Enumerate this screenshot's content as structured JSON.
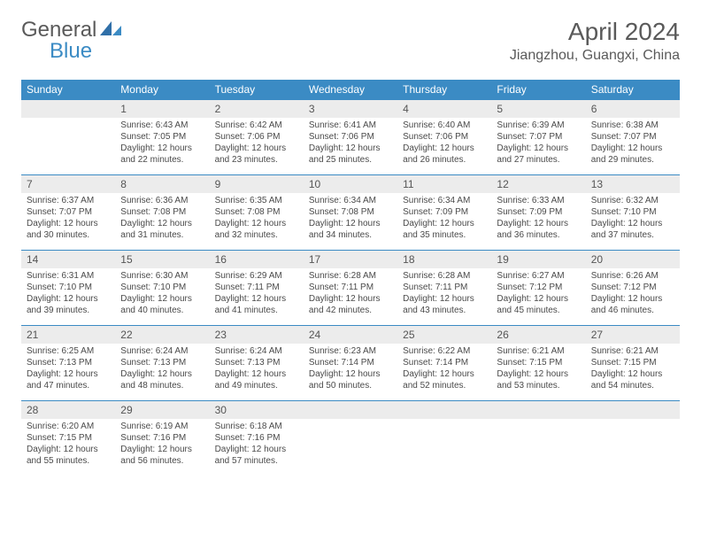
{
  "logo": {
    "general": "General",
    "blue": "Blue"
  },
  "title": "April 2024",
  "location": "Jiangzhou, Guangxi, China",
  "colors": {
    "header_bg": "#3b8bc4",
    "header_text": "#ffffff",
    "daynum_bg": "#ececec",
    "rule": "#3b8bc4",
    "text": "#4a4a4a",
    "page_bg": "#ffffff"
  },
  "typography": {
    "title_fontsize": 28,
    "location_fontsize": 16,
    "dow_fontsize": 12,
    "body_fontsize": 10
  },
  "dow": [
    "Sunday",
    "Monday",
    "Tuesday",
    "Wednesday",
    "Thursday",
    "Friday",
    "Saturday"
  ],
  "weeks": [
    [
      {
        "num": "",
        "lines": []
      },
      {
        "num": "1",
        "lines": [
          "Sunrise: 6:43 AM",
          "Sunset: 7:05 PM",
          "Daylight: 12 hours",
          "and 22 minutes."
        ]
      },
      {
        "num": "2",
        "lines": [
          "Sunrise: 6:42 AM",
          "Sunset: 7:06 PM",
          "Daylight: 12 hours",
          "and 23 minutes."
        ]
      },
      {
        "num": "3",
        "lines": [
          "Sunrise: 6:41 AM",
          "Sunset: 7:06 PM",
          "Daylight: 12 hours",
          "and 25 minutes."
        ]
      },
      {
        "num": "4",
        "lines": [
          "Sunrise: 6:40 AM",
          "Sunset: 7:06 PM",
          "Daylight: 12 hours",
          "and 26 minutes."
        ]
      },
      {
        "num": "5",
        "lines": [
          "Sunrise: 6:39 AM",
          "Sunset: 7:07 PM",
          "Daylight: 12 hours",
          "and 27 minutes."
        ]
      },
      {
        "num": "6",
        "lines": [
          "Sunrise: 6:38 AM",
          "Sunset: 7:07 PM",
          "Daylight: 12 hours",
          "and 29 minutes."
        ]
      }
    ],
    [
      {
        "num": "7",
        "lines": [
          "Sunrise: 6:37 AM",
          "Sunset: 7:07 PM",
          "Daylight: 12 hours",
          "and 30 minutes."
        ]
      },
      {
        "num": "8",
        "lines": [
          "Sunrise: 6:36 AM",
          "Sunset: 7:08 PM",
          "Daylight: 12 hours",
          "and 31 minutes."
        ]
      },
      {
        "num": "9",
        "lines": [
          "Sunrise: 6:35 AM",
          "Sunset: 7:08 PM",
          "Daylight: 12 hours",
          "and 32 minutes."
        ]
      },
      {
        "num": "10",
        "lines": [
          "Sunrise: 6:34 AM",
          "Sunset: 7:08 PM",
          "Daylight: 12 hours",
          "and 34 minutes."
        ]
      },
      {
        "num": "11",
        "lines": [
          "Sunrise: 6:34 AM",
          "Sunset: 7:09 PM",
          "Daylight: 12 hours",
          "and 35 minutes."
        ]
      },
      {
        "num": "12",
        "lines": [
          "Sunrise: 6:33 AM",
          "Sunset: 7:09 PM",
          "Daylight: 12 hours",
          "and 36 minutes."
        ]
      },
      {
        "num": "13",
        "lines": [
          "Sunrise: 6:32 AM",
          "Sunset: 7:10 PM",
          "Daylight: 12 hours",
          "and 37 minutes."
        ]
      }
    ],
    [
      {
        "num": "14",
        "lines": [
          "Sunrise: 6:31 AM",
          "Sunset: 7:10 PM",
          "Daylight: 12 hours",
          "and 39 minutes."
        ]
      },
      {
        "num": "15",
        "lines": [
          "Sunrise: 6:30 AM",
          "Sunset: 7:10 PM",
          "Daylight: 12 hours",
          "and 40 minutes."
        ]
      },
      {
        "num": "16",
        "lines": [
          "Sunrise: 6:29 AM",
          "Sunset: 7:11 PM",
          "Daylight: 12 hours",
          "and 41 minutes."
        ]
      },
      {
        "num": "17",
        "lines": [
          "Sunrise: 6:28 AM",
          "Sunset: 7:11 PM",
          "Daylight: 12 hours",
          "and 42 minutes."
        ]
      },
      {
        "num": "18",
        "lines": [
          "Sunrise: 6:28 AM",
          "Sunset: 7:11 PM",
          "Daylight: 12 hours",
          "and 43 minutes."
        ]
      },
      {
        "num": "19",
        "lines": [
          "Sunrise: 6:27 AM",
          "Sunset: 7:12 PM",
          "Daylight: 12 hours",
          "and 45 minutes."
        ]
      },
      {
        "num": "20",
        "lines": [
          "Sunrise: 6:26 AM",
          "Sunset: 7:12 PM",
          "Daylight: 12 hours",
          "and 46 minutes."
        ]
      }
    ],
    [
      {
        "num": "21",
        "lines": [
          "Sunrise: 6:25 AM",
          "Sunset: 7:13 PM",
          "Daylight: 12 hours",
          "and 47 minutes."
        ]
      },
      {
        "num": "22",
        "lines": [
          "Sunrise: 6:24 AM",
          "Sunset: 7:13 PM",
          "Daylight: 12 hours",
          "and 48 minutes."
        ]
      },
      {
        "num": "23",
        "lines": [
          "Sunrise: 6:24 AM",
          "Sunset: 7:13 PM",
          "Daylight: 12 hours",
          "and 49 minutes."
        ]
      },
      {
        "num": "24",
        "lines": [
          "Sunrise: 6:23 AM",
          "Sunset: 7:14 PM",
          "Daylight: 12 hours",
          "and 50 minutes."
        ]
      },
      {
        "num": "25",
        "lines": [
          "Sunrise: 6:22 AM",
          "Sunset: 7:14 PM",
          "Daylight: 12 hours",
          "and 52 minutes."
        ]
      },
      {
        "num": "26",
        "lines": [
          "Sunrise: 6:21 AM",
          "Sunset: 7:15 PM",
          "Daylight: 12 hours",
          "and 53 minutes."
        ]
      },
      {
        "num": "27",
        "lines": [
          "Sunrise: 6:21 AM",
          "Sunset: 7:15 PM",
          "Daylight: 12 hours",
          "and 54 minutes."
        ]
      }
    ],
    [
      {
        "num": "28",
        "lines": [
          "Sunrise: 6:20 AM",
          "Sunset: 7:15 PM",
          "Daylight: 12 hours",
          "and 55 minutes."
        ]
      },
      {
        "num": "29",
        "lines": [
          "Sunrise: 6:19 AM",
          "Sunset: 7:16 PM",
          "Daylight: 12 hours",
          "and 56 minutes."
        ]
      },
      {
        "num": "30",
        "lines": [
          "Sunrise: 6:18 AM",
          "Sunset: 7:16 PM",
          "Daylight: 12 hours",
          "and 57 minutes."
        ]
      },
      {
        "num": "",
        "lines": []
      },
      {
        "num": "",
        "lines": []
      },
      {
        "num": "",
        "lines": []
      },
      {
        "num": "",
        "lines": []
      }
    ]
  ]
}
